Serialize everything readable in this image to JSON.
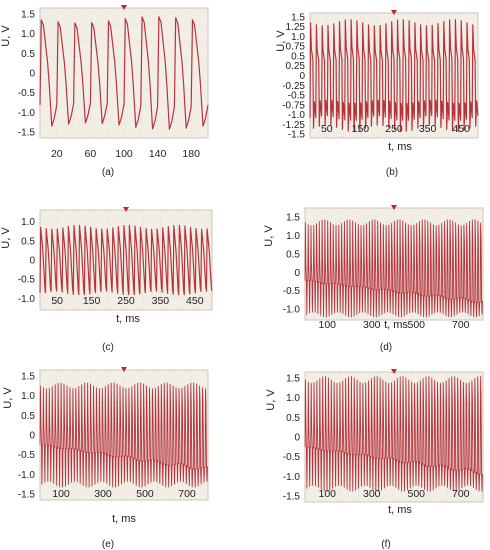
{
  "chart_data": [
    {
      "type": "line",
      "panel_label": "(a)",
      "xlabel": "",
      "ylabel": "U, V",
      "xticks": [
        20,
        60,
        100,
        140,
        180
      ],
      "yticks": [
        1.5,
        1.0,
        0.5,
        0,
        -0.5,
        -1.0,
        -1.5
      ],
      "xlim": [
        0,
        200
      ],
      "ylim": [
        -1.65,
        1.65
      ],
      "series": [
        {
          "waveform": "triangular",
          "period_ms": 20,
          "amplitude_V": 1.3,
          "pos_peak_V": 1.35,
          "neg_peak_V": -1.35,
          "cycles": 10
        }
      ]
    },
    {
      "type": "line",
      "panel_label": "(b)",
      "xlabel": "t, ms",
      "ylabel": "U, V",
      "xticks": [
        50,
        150,
        250,
        350,
        450
      ],
      "yticks": [
        1.5,
        1.25,
        1.0,
        0.75,
        0.5,
        0.25,
        0,
        -0.25,
        -0.5,
        -0.75,
        -1.0,
        -1.25,
        -1.5
      ],
      "xlim": [
        0,
        500
      ],
      "ylim": [
        -1.6,
        1.6
      ],
      "series": [
        {
          "waveform": "spiky",
          "period_ms": 17,
          "amplitude_V": 1.3,
          "pos_peak_V": 1.35,
          "neg_peak_V": -1.35,
          "cycles": 29
        }
      ]
    },
    {
      "type": "line",
      "panel_label": "(c)",
      "xlabel": "t, ms",
      "ylabel": "U, V",
      "xticks": [
        50,
        150,
        250,
        350,
        450
      ],
      "yticks": [
        1.0,
        0.5,
        0,
        -0.5,
        -1.0
      ],
      "xlim": [
        0,
        500
      ],
      "ylim": [
        -1.3,
        1.3
      ],
      "series": [
        {
          "waveform": "sawtooth",
          "period_ms": 16,
          "amplitude_V": 0.85,
          "pos_peak_V": 0.85,
          "neg_peak_V": -0.85,
          "cycles": 31
        }
      ]
    },
    {
      "type": "line",
      "panel_label": "(d)",
      "xlabel": "t, ms",
      "ylabel": "U, V",
      "xticks": [
        100,
        300,
        500,
        700
      ],
      "yticks": [
        1.5,
        1.0,
        0.5,
        0,
        -0.5,
        -1.0
      ],
      "xlim": [
        0,
        800
      ],
      "ylim": [
        -1.3,
        1.75
      ],
      "series": [
        {
          "waveform": "dense",
          "period_ms": 12.5,
          "amplitude_V": 1.3,
          "pos_peak_V": 1.35,
          "neg_peak_V": -1.15,
          "cycles": 64
        }
      ]
    },
    {
      "type": "line",
      "panel_label": "(e)",
      "xlabel": "t, ms",
      "ylabel": "U, V",
      "xticks": [
        100,
        300,
        500,
        700
      ],
      "yticks": [
        1.5,
        1.0,
        0.5,
        0,
        -0.5,
        -1.0,
        -1.5
      ],
      "xlim": [
        0,
        800
      ],
      "ylim": [
        -1.65,
        1.65
      ],
      "series": [
        {
          "waveform": "dense",
          "period_ms": 14,
          "amplitude_V": 1.25,
          "pos_peak_V": 1.25,
          "neg_peak_V": -1.25,
          "cycles": 57
        }
      ]
    },
    {
      "type": "line",
      "panel_label": "(f)",
      "xlabel": "t, ms",
      "ylabel": "U, V",
      "xticks": [
        100,
        300,
        500,
        700
      ],
      "yticks": [
        1.5,
        1.0,
        0.5,
        0,
        -0.5,
        -1.0,
        -1.5
      ],
      "xlim": [
        0,
        800
      ],
      "ylim": [
        -1.65,
        1.65
      ],
      "series": [
        {
          "waveform": "dense",
          "period_ms": 13,
          "amplitude_V": 1.4,
          "pos_peak_V": 1.45,
          "neg_peak_V": -1.3,
          "cycles": 62
        }
      ]
    }
  ],
  "colors": {
    "trace": "#b5353d",
    "trace_fill": "#d98a8e",
    "screen_bg": "#f2eee6",
    "grid": "#d8d2c6"
  }
}
